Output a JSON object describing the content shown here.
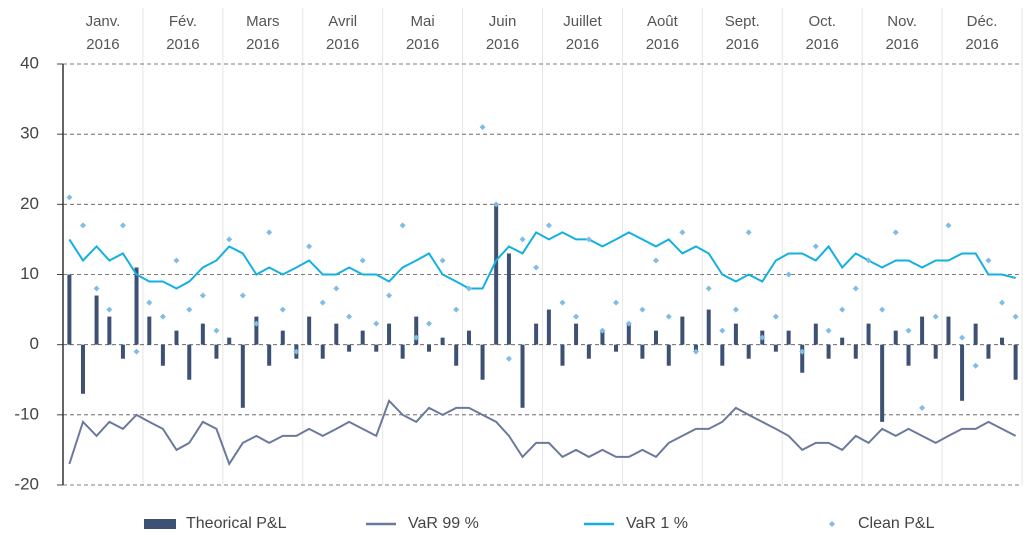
{
  "chart_data": {
    "type": "combo",
    "xlim": [
      0,
      12
    ],
    "xticks": [
      {
        "value": 0.5,
        "label": "Janv. 2016"
      },
      {
        "value": 1.5,
        "label": "Fév. 2016"
      },
      {
        "value": 2.5,
        "label": "Mars 2016"
      },
      {
        "value": 3.5,
        "label": "Avril 2016"
      },
      {
        "value": 4.5,
        "label": "Mai 2016"
      },
      {
        "value": 5.5,
        "label": "Juin 2016"
      },
      {
        "value": 6.5,
        "label": "Juillet 2016"
      },
      {
        "value": 7.5,
        "label": "Août 2016"
      },
      {
        "value": 8.5,
        "label": "Sept. 2016"
      },
      {
        "value": 9.5,
        "label": "Oct. 2016"
      },
      {
        "value": 10.5,
        "label": "Nov. 2016"
      },
      {
        "value": 11.5,
        "label": "Déc. 2016"
      }
    ],
    "ylim": [
      -20,
      40
    ],
    "yticks": [
      -20,
      -10,
      0,
      10,
      20,
      30,
      40
    ],
    "grid": true,
    "x": [
      0.08,
      0.25,
      0.42,
      0.58,
      0.75,
      0.92,
      1.08,
      1.25,
      1.42,
      1.58,
      1.75,
      1.92,
      2.08,
      2.25,
      2.42,
      2.58,
      2.75,
      2.92,
      3.08,
      3.25,
      3.42,
      3.58,
      3.75,
      3.92,
      4.08,
      4.25,
      4.42,
      4.58,
      4.75,
      4.92,
      5.08,
      5.25,
      5.42,
      5.58,
      5.75,
      5.92,
      6.08,
      6.25,
      6.42,
      6.58,
      6.75,
      6.92,
      7.08,
      7.25,
      7.42,
      7.58,
      7.75,
      7.92,
      8.08,
      8.25,
      8.42,
      8.58,
      8.75,
      8.92,
      9.08,
      9.25,
      9.42,
      9.58,
      9.75,
      9.92,
      10.08,
      10.25,
      10.42,
      10.58,
      10.75,
      10.92,
      11.08,
      11.25,
      11.42,
      11.58,
      11.75,
      11.92
    ],
    "series": [
      {
        "name": "Theorical P&L",
        "type": "bar",
        "color": "#3d5175",
        "values": [
          10,
          -7,
          7,
          4,
          -2,
          11,
          4,
          -3,
          2,
          -5,
          3,
          -2,
          1,
          -9,
          4,
          -3,
          2,
          -2,
          4,
          -2,
          3,
          -1,
          2,
          -1,
          3,
          -2,
          4,
          -1,
          1,
          -3,
          2,
          -5,
          20,
          13,
          -9,
          3,
          5,
          -3,
          3,
          -2,
          2,
          -1,
          3,
          -2,
          2,
          -3,
          4,
          -1,
          5,
          -3,
          3,
          -2,
          2,
          -1,
          2,
          -4,
          3,
          -2,
          1,
          -2,
          3,
          -11,
          2,
          -3,
          4,
          -2,
          4,
          -8,
          3,
          -2,
          1,
          -5
        ]
      },
      {
        "name": "VaR 99 %",
        "type": "line",
        "color": "#6b7a9c",
        "values": [
          -17,
          -11,
          -13,
          -11,
          -12,
          -10,
          -11,
          -12,
          -15,
          -14,
          -11,
          -12,
          -17,
          -14,
          -13,
          -14,
          -13,
          -13,
          -12,
          -13,
          -12,
          -11,
          -12,
          -13,
          -8,
          -10,
          -11,
          -9,
          -10,
          -9,
          -9,
          -10,
          -11,
          -13,
          -16,
          -14,
          -14,
          -16,
          -15,
          -16,
          -15,
          -16,
          -16,
          -15,
          -16,
          -14,
          -13,
          -12,
          -12,
          -11,
          -9,
          -10,
          -11,
          -12,
          -13,
          -15,
          -14,
          -14,
          -15,
          -13,
          -14,
          -12,
          -13,
          -12,
          -13,
          -14,
          -13,
          -12,
          -12,
          -11,
          -12,
          -13
        ]
      },
      {
        "name": "VaR 1 %",
        "type": "line",
        "color": "#14b1e0",
        "values": [
          15,
          12,
          14,
          12,
          13,
          10,
          9,
          9,
          8,
          9,
          11,
          12,
          14,
          13,
          10,
          11,
          10,
          11,
          12,
          10,
          10,
          11,
          10,
          10,
          9,
          11,
          12,
          13,
          10,
          9,
          8,
          8,
          12,
          14,
          13,
          16,
          15,
          16,
          15,
          15,
          14,
          15,
          16,
          15,
          14,
          15,
          13,
          14,
          13,
          10,
          9,
          10,
          9,
          12,
          13,
          13,
          12,
          14,
          11,
          13,
          12,
          11,
          12,
          12,
          11,
          12,
          12,
          13,
          13,
          10,
          10,
          9.5
        ]
      },
      {
        "name": "Clean P&L",
        "type": "scatter",
        "color": "#7fbde6",
        "values": [
          21,
          17,
          8,
          5,
          17,
          -1,
          6,
          4,
          12,
          5,
          7,
          2,
          15,
          7,
          3,
          16,
          5,
          -1,
          14,
          6,
          8,
          4,
          12,
          3,
          7,
          17,
          1,
          3,
          12,
          5,
          8,
          31,
          20,
          -2,
          15,
          11,
          17,
          6,
          4,
          15,
          2,
          6,
          3,
          5,
          12,
          4,
          16,
          -1,
          8,
          2,
          5,
          16,
          1,
          4,
          10,
          -1,
          14,
          2,
          5,
          8,
          12,
          5,
          16,
          2,
          -9,
          4,
          17,
          1,
          -3,
          12,
          6,
          4
        ]
      }
    ]
  }
}
